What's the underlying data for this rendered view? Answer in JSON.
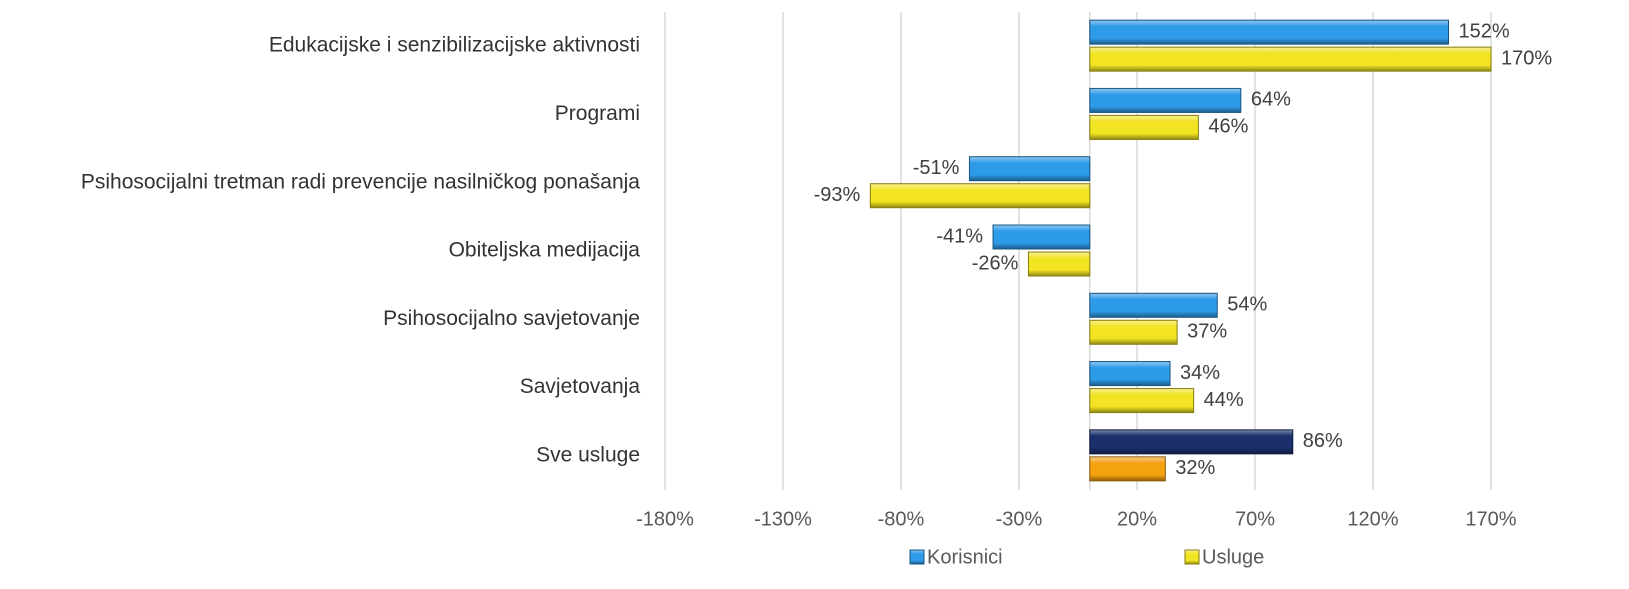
{
  "chart_data": {
    "type": "bar",
    "orientation": "horizontal",
    "categories": [
      "Edukacijske i senzibilizacijske aktivnosti",
      "Programi",
      "Psihosocijalni tretman radi prevencije nasilničkog ponašanja",
      "Obiteljska medijacija",
      "Psihosocijalno savjetovanje",
      "Savjetovanja",
      "Sve usluge"
    ],
    "series": [
      {
        "name": "Korisnici",
        "color": "#2e9be8",
        "colors": [
          "#2e9be8",
          "#2e9be8",
          "#2e9be8",
          "#2e9be8",
          "#2e9be8",
          "#2e9be8",
          "#1a2f6b"
        ],
        "values": [
          152,
          64,
          -51,
          -41,
          54,
          34,
          86
        ],
        "value_labels": [
          "152%",
          "64%",
          "-51%",
          "-41%",
          "54%",
          "34%",
          "86%"
        ]
      },
      {
        "name": "Usluge",
        "color": "#f2e422",
        "colors": [
          "#f2e422",
          "#f2e422",
          "#f2e422",
          "#f2e422",
          "#f2e422",
          "#f2e422",
          "#f5a20f"
        ],
        "values": [
          170,
          46,
          -93,
          -26,
          37,
          44,
          32
        ],
        "value_labels": [
          "170%",
          "46%",
          "-93%",
          "-26%",
          "37%",
          "44%",
          "32%"
        ]
      }
    ],
    "xlim": [
      -180,
      170
    ],
    "xticks": [
      {
        "value": -180,
        "label": "-180%"
      },
      {
        "value": -130,
        "label": "-130%"
      },
      {
        "value": -80,
        "label": "-80%"
      },
      {
        "value": -30,
        "label": "-30%"
      },
      {
        "value": 20,
        "label": "20%"
      },
      {
        "value": 70,
        "label": "70%"
      },
      {
        "value": 120,
        "label": "120%"
      },
      {
        "value": 170,
        "label": "170%"
      }
    ],
    "grid": true,
    "legend": "bottom"
  }
}
